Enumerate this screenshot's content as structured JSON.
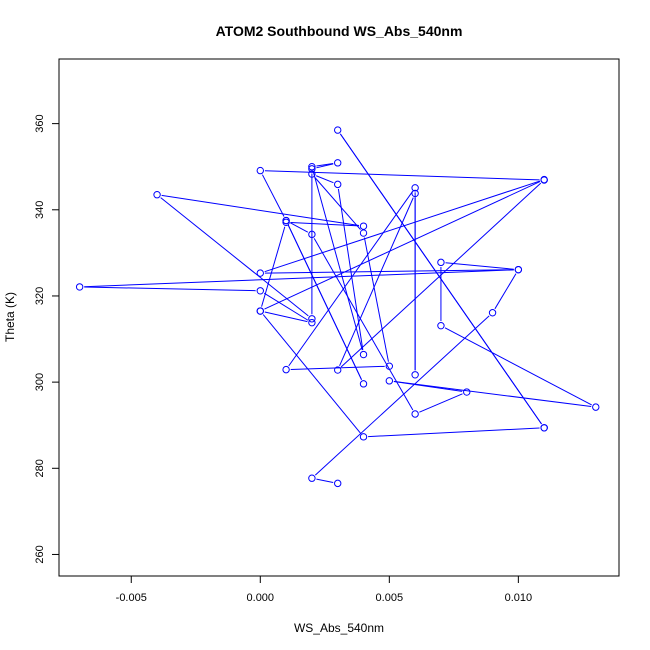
{
  "chart_data": {
    "type": "line",
    "title": "ATOM2 Southbound WS_Abs_540nm",
    "xlabel": "WS_Abs_540nm",
    "ylabel": "Theta (K)",
    "xlim": [
      -0.0078,
      0.0139
    ],
    "ylim": [
      255,
      375
    ],
    "xticks": [
      -0.005,
      0.0,
      0.005,
      0.01
    ],
    "xtick_labels": [
      "-0.005",
      "0.000",
      "0.005",
      "0.010"
    ],
    "yticks": [
      260,
      280,
      300,
      320,
      340,
      360
    ],
    "ytick_labels": [
      "260",
      "280",
      "300",
      "320",
      "340",
      "360"
    ],
    "grid": false,
    "series": [
      {
        "color": "#0000ff",
        "marker": "open-circle",
        "points": [
          [
            0.003,
            276.5
          ],
          [
            0.002,
            277.7
          ],
          [
            0.009,
            316.1
          ],
          [
            0.01,
            326.1
          ],
          [
            0.007,
            327.8
          ],
          [
            0.007,
            313.1
          ],
          [
            0.013,
            294.2
          ],
          [
            0.005,
            300.3
          ],
          [
            0.008,
            297.7
          ],
          [
            0.006,
            292.6
          ],
          [
            0.002,
            334.3
          ],
          [
            0.001,
            337.5
          ],
          [
            0.004,
            299.6
          ],
          [
            0.001,
            337.5
          ],
          [
            0.0,
            349.1
          ],
          [
            0.011,
            346.9
          ],
          [
            0.003,
            302.8
          ],
          [
            0.006,
            343.8
          ],
          [
            0.006,
            301.7
          ],
          [
            0.006,
            345.1
          ],
          [
            0.001,
            302.9
          ],
          [
            0.005,
            303.7
          ],
          [
            0.004,
            334.6
          ],
          [
            0.002,
            348.3
          ],
          [
            0.003,
            345.9
          ],
          [
            0.004,
            306.4
          ],
          [
            0.002,
            350.0
          ],
          [
            0.003,
            350.9
          ],
          [
            0.002,
            349.5
          ],
          [
            0.002,
            314.7
          ],
          [
            -0.004,
            343.5
          ],
          [
            0.004,
            336.2
          ],
          [
            0.001,
            337.1
          ],
          [
            0.0,
            316.5
          ],
          [
            0.002,
            313.8
          ],
          [
            0.0,
            321.2
          ],
          [
            -0.007,
            322.1
          ],
          [
            0.01,
            326.1
          ],
          [
            0.0,
            325.3
          ],
          [
            0.011,
            347.0
          ],
          [
            0.0,
            316.5
          ],
          [
            0.004,
            287.3
          ],
          [
            0.011,
            289.4
          ],
          [
            0.003,
            358.5
          ],
          [
            0.011,
            289.4
          ]
        ]
      }
    ]
  }
}
